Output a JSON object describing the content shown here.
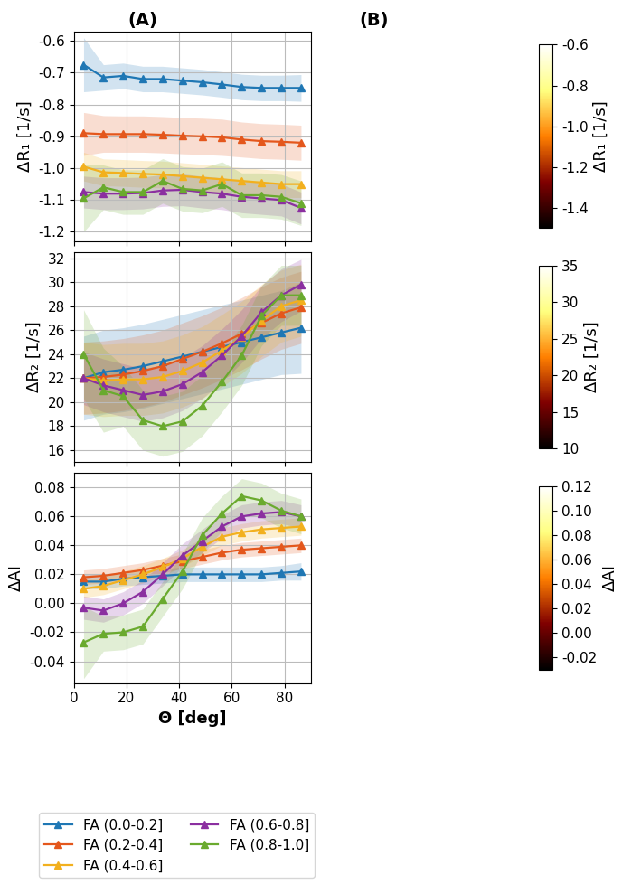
{
  "panel_labels": [
    "(A)",
    "(B)"
  ],
  "chart_data": [
    {
      "type": "line",
      "ylabel": "ΔR₁ [1/s]",
      "grid": true,
      "tick_labels": "y",
      "marker": "^",
      "x": [
        3.75,
        11.25,
        18.75,
        26.25,
        33.75,
        41.25,
        48.75,
        56.25,
        63.75,
        71.25,
        78.75,
        86.25
      ],
      "xlim": [
        0,
        90
      ],
      "xticks": [
        0,
        20,
        40,
        60,
        80
      ],
      "ylim": [
        -1.23,
        -0.57
      ],
      "yticks": [
        -1.2,
        -1.1,
        -1.0,
        -0.9,
        -0.8,
        -0.7,
        -0.6
      ],
      "series": [
        {
          "name": "FA (0.0-0.2]",
          "color": "#1f77b4",
          "values": [
            -0.675,
            -0.715,
            -0.71,
            -0.72,
            -0.72,
            -0.725,
            -0.73,
            -0.737,
            -0.745,
            -0.748,
            -0.748,
            -0.748
          ],
          "lower": [
            -0.76,
            -0.755,
            -0.75,
            -0.76,
            -0.76,
            -0.765,
            -0.77,
            -0.777,
            -0.785,
            -0.788,
            -0.788,
            -0.79
          ],
          "upper": [
            -0.59,
            -0.675,
            -0.67,
            -0.68,
            -0.68,
            -0.685,
            -0.69,
            -0.697,
            -0.705,
            -0.708,
            -0.708,
            -0.706
          ]
        },
        {
          "name": "FA (0.2-0.4]",
          "color": "#e4571c",
          "values": [
            -0.89,
            -0.893,
            -0.893,
            -0.893,
            -0.895,
            -0.898,
            -0.9,
            -0.903,
            -0.91,
            -0.915,
            -0.917,
            -0.92
          ],
          "lower": [
            -0.96,
            -0.95,
            -0.95,
            -0.95,
            -0.952,
            -0.955,
            -0.957,
            -0.96,
            -0.965,
            -0.97,
            -0.972,
            -0.975
          ],
          "upper": [
            -0.825,
            -0.835,
            -0.836,
            -0.836,
            -0.838,
            -0.841,
            -0.843,
            -0.846,
            -0.855,
            -0.86,
            -0.862,
            -0.865
          ]
        },
        {
          "name": "FA (0.4-0.6]",
          "color": "#f2b01e",
          "values": [
            -0.995,
            -1.013,
            -1.015,
            -1.018,
            -1.02,
            -1.025,
            -1.03,
            -1.035,
            -1.04,
            -1.045,
            -1.05,
            -1.05
          ],
          "lower": [
            -1.04,
            -1.055,
            -1.057,
            -1.06,
            -1.062,
            -1.067,
            -1.072,
            -1.077,
            -1.082,
            -1.087,
            -1.092,
            -1.092
          ],
          "upper": [
            -0.95,
            -0.971,
            -0.973,
            -0.976,
            -0.978,
            -0.983,
            -0.988,
            -0.993,
            -0.998,
            -1.003,
            -1.008,
            -1.008
          ]
        },
        {
          "name": "FA (0.6-0.8]",
          "color": "#8b2fa0",
          "values": [
            -1.075,
            -1.08,
            -1.08,
            -1.078,
            -1.07,
            -1.068,
            -1.075,
            -1.08,
            -1.09,
            -1.095,
            -1.1,
            -1.125
          ],
          "lower": [
            -1.125,
            -1.13,
            -1.13,
            -1.128,
            -1.12,
            -1.118,
            -1.125,
            -1.13,
            -1.14,
            -1.145,
            -1.15,
            -1.175
          ],
          "upper": [
            -1.025,
            -1.03,
            -1.03,
            -1.028,
            -1.02,
            -1.018,
            -1.025,
            -1.03,
            -1.04,
            -1.045,
            -1.05,
            -1.075
          ]
        },
        {
          "name": "FA (0.8-1.0]",
          "color": "#6aaa2e",
          "values": [
            -1.095,
            -1.06,
            -1.075,
            -1.075,
            -1.04,
            -1.065,
            -1.07,
            -1.05,
            -1.085,
            -1.085,
            -1.09,
            -1.11
          ],
          "lower": [
            -1.2,
            -1.13,
            -1.145,
            -1.145,
            -1.11,
            -1.135,
            -1.14,
            -1.12,
            -1.155,
            -1.155,
            -1.16,
            -1.18
          ],
          "upper": [
            -0.99,
            -0.99,
            -1.005,
            -1.005,
            -0.97,
            -0.995,
            -1.0,
            -0.98,
            -1.015,
            -1.015,
            -1.02,
            -1.04
          ]
        }
      ]
    },
    {
      "type": "line",
      "ylabel": "ΔR₂ [1/s]",
      "grid": true,
      "tick_labels": "y",
      "marker": "^",
      "x": [
        3.75,
        11.25,
        18.75,
        26.25,
        33.75,
        41.25,
        48.75,
        56.25,
        63.75,
        71.25,
        78.75,
        86.25
      ],
      "xlim": [
        0,
        90
      ],
      "xticks": [
        0,
        20,
        40,
        60,
        80
      ],
      "ylim": [
        15,
        32.5
      ],
      "yticks": [
        16,
        18,
        20,
        22,
        24,
        26,
        28,
        30,
        32
      ],
      "series": [
        {
          "name": "FA (0.0-0.2]",
          "color": "#1f77b4",
          "values": [
            22.0,
            22.5,
            22.7,
            23.0,
            23.4,
            23.8,
            24.2,
            24.6,
            25.0,
            25.4,
            25.8,
            26.2
          ],
          "lower": [
            18.5,
            19.0,
            19.2,
            19.5,
            19.9,
            20.3,
            20.7,
            21.1,
            21.5,
            21.9,
            22.3,
            22.4
          ],
          "upper": [
            25.5,
            26.0,
            26.2,
            26.5,
            26.9,
            27.3,
            27.7,
            28.1,
            28.5,
            28.9,
            29.3,
            30.0
          ]
        },
        {
          "name": "FA (0.2-0.4]",
          "color": "#e4571c",
          "values": [
            22.0,
            22.1,
            22.3,
            22.6,
            23.0,
            23.6,
            24.2,
            24.9,
            25.7,
            26.6,
            27.4,
            27.9
          ],
          "lower": [
            19.0,
            19.1,
            19.3,
            19.6,
            20.0,
            20.6,
            21.2,
            21.9,
            22.7,
            23.6,
            24.4,
            24.9
          ],
          "upper": [
            25.0,
            25.1,
            25.3,
            25.6,
            26.0,
            26.6,
            27.2,
            27.9,
            28.7,
            29.6,
            30.4,
            30.9
          ]
        },
        {
          "name": "FA (0.4-0.6]",
          "color": "#f2b01e",
          "values": [
            22.0,
            21.8,
            21.9,
            21.9,
            22.1,
            22.6,
            23.3,
            24.3,
            25.4,
            26.8,
            28.0,
            28.5
          ],
          "lower": [
            19.0,
            18.8,
            18.9,
            18.9,
            19.1,
            19.6,
            20.3,
            21.3,
            22.4,
            23.8,
            25.0,
            25.5
          ],
          "upper": [
            25.0,
            24.8,
            24.9,
            24.9,
            25.1,
            25.6,
            26.3,
            27.3,
            28.4,
            29.8,
            31.0,
            31.5
          ]
        },
        {
          "name": "FA (0.6-0.8]",
          "color": "#8b2fa0",
          "values": [
            22.0,
            21.4,
            21.0,
            20.6,
            20.9,
            21.5,
            22.5,
            23.9,
            25.5,
            27.5,
            28.9,
            29.8
          ],
          "lower": [
            19.8,
            19.2,
            18.8,
            18.4,
            18.7,
            19.3,
            20.3,
            21.7,
            23.3,
            25.3,
            26.7,
            27.6
          ],
          "upper": [
            24.2,
            23.6,
            23.2,
            22.8,
            23.1,
            23.7,
            24.7,
            26.1,
            27.7,
            29.7,
            31.1,
            31.9
          ]
        },
        {
          "name": "FA (0.8-1.0]",
          "color": "#6aaa2e",
          "values": [
            24.0,
            21.0,
            20.5,
            18.5,
            18.0,
            18.4,
            19.7,
            21.7,
            23.9,
            27.2,
            28.9,
            28.9
          ],
          "lower": [
            20.3,
            17.5,
            18.0,
            16.0,
            15.5,
            15.9,
            17.2,
            19.2,
            21.4,
            24.7,
            26.4,
            26.4
          ],
          "upper": [
            27.7,
            24.5,
            23.0,
            21.0,
            20.5,
            20.9,
            22.2,
            24.2,
            26.4,
            29.7,
            31.4,
            31.4
          ]
        }
      ]
    },
    {
      "type": "line",
      "ylabel": "ΔAI",
      "xlabel": "Θ [deg]",
      "grid": true,
      "marker": "^",
      "x": [
        3.75,
        11.25,
        18.75,
        26.25,
        33.75,
        41.25,
        48.75,
        56.25,
        63.75,
        71.25,
        78.75,
        86.25
      ],
      "xlim": [
        0,
        90
      ],
      "xticks": [
        0,
        20,
        40,
        60,
        80
      ],
      "ylim": [
        -0.055,
        0.09
      ],
      "yticks": [
        -0.04,
        -0.02,
        {
          "value": 0,
          "label": "0.00"
        },
        0.02,
        0.04,
        0.06,
        0.08
      ],
      "legend": "lower left",
      "series": [
        {
          "name": "FA (0.0-0.2]",
          "color": "#1f77b4",
          "values": [
            0.015,
            0.015,
            0.017,
            0.018,
            0.019,
            0.02,
            0.02,
            0.02,
            0.02,
            0.02,
            0.021,
            0.022
          ],
          "lower": [
            0.01,
            0.01,
            0.012,
            0.013,
            0.014,
            0.015,
            0.015,
            0.015,
            0.015,
            0.015,
            0.016,
            0.016
          ],
          "upper": [
            0.02,
            0.02,
            0.022,
            0.023,
            0.024,
            0.025,
            0.025,
            0.025,
            0.025,
            0.025,
            0.026,
            0.028
          ]
        },
        {
          "name": "FA (0.2-0.4]",
          "color": "#e4571c",
          "values": [
            0.018,
            0.019,
            0.021,
            0.023,
            0.026,
            0.029,
            0.032,
            0.035,
            0.037,
            0.038,
            0.039,
            0.04
          ],
          "lower": [
            0.013,
            0.014,
            0.016,
            0.018,
            0.021,
            0.024,
            0.027,
            0.03,
            0.032,
            0.033,
            0.034,
            0.035
          ],
          "upper": [
            0.023,
            0.024,
            0.026,
            0.028,
            0.031,
            0.034,
            0.037,
            0.04,
            0.042,
            0.043,
            0.044,
            0.045
          ]
        },
        {
          "name": "FA (0.4-0.6]",
          "color": "#f2b01e",
          "values": [
            0.01,
            0.012,
            0.016,
            0.02,
            0.025,
            0.031,
            0.039,
            0.046,
            0.049,
            0.051,
            0.052,
            0.053
          ],
          "lower": [
            0.004,
            0.006,
            0.01,
            0.014,
            0.019,
            0.025,
            0.033,
            0.04,
            0.043,
            0.045,
            0.046,
            0.047
          ],
          "upper": [
            0.016,
            0.018,
            0.022,
            0.026,
            0.031,
            0.037,
            0.045,
            0.052,
            0.055,
            0.057,
            0.058,
            0.059
          ]
        },
        {
          "name": "FA (0.6-0.8]",
          "color": "#8b2fa0",
          "values": [
            -0.003,
            -0.005,
            0.0,
            0.008,
            0.02,
            0.033,
            0.043,
            0.053,
            0.06,
            0.062,
            0.063,
            0.06
          ],
          "lower": [
            -0.011,
            -0.013,
            -0.008,
            0.0,
            0.012,
            0.025,
            0.035,
            0.045,
            0.052,
            0.054,
            0.055,
            0.052
          ],
          "upper": [
            0.005,
            0.003,
            0.008,
            0.016,
            0.028,
            0.041,
            0.051,
            0.061,
            0.068,
            0.07,
            0.071,
            0.068
          ]
        },
        {
          "name": "FA (0.8-1.0]",
          "color": "#6aaa2e",
          "values": [
            -0.027,
            -0.021,
            -0.02,
            -0.016,
            0.003,
            0.022,
            0.047,
            0.062,
            0.074,
            0.071,
            0.064,
            0.06
          ],
          "lower": [
            -0.052,
            -0.033,
            -0.032,
            -0.028,
            -0.009,
            0.01,
            0.035,
            0.05,
            0.062,
            0.059,
            0.052,
            0.048
          ],
          "upper": [
            -0.002,
            -0.009,
            -0.008,
            -0.004,
            0.015,
            0.034,
            0.059,
            0.074,
            0.086,
            0.083,
            0.076,
            0.072
          ]
        }
      ]
    },
    {
      "type": "colorbar",
      "label": "ΔR₁ [1/s]",
      "range": [
        -1.5,
        -0.6
      ],
      "ticks": [
        -1.4,
        -1.2,
        -1.0,
        -0.8,
        -0.6
      ]
    },
    {
      "type": "colorbar",
      "label": "ΔR₂ [1/s]",
      "range": [
        10,
        35
      ],
      "ticks": [
        10,
        15,
        20,
        25,
        30,
        35
      ]
    },
    {
      "type": "colorbar",
      "label": "ΔAI",
      "range": [
        -0.03,
        0.12
      ],
      "ticks": [
        -0.02,
        {
          "value": 0,
          "label": "0.00"
        },
        0.02,
        0.04,
        0.06,
        0.08,
        {
          "value": 0.1,
          "label": "0.10"
        },
        0.12
      ]
    }
  ]
}
